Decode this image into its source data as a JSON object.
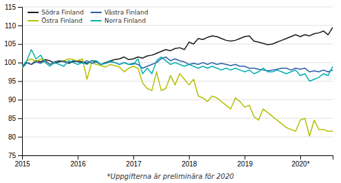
{
  "chart_data": {
    "type": "line",
    "annotations": [
      "*Uppgifterna är preliminära för 2020"
    ],
    "x": [
      2015,
      2015.0833333333333,
      2015.1666666666667,
      2015.25,
      2015.3333333333333,
      2015.4166666666667,
      2015.5,
      2015.5833333333333,
      2015.6666666666667,
      2015.75,
      2015.8333333333333,
      2015.9166666666667,
      2016,
      2016.0833333333333,
      2016.1666666666667,
      2016.25,
      2016.3333333333333,
      2016.4166666666667,
      2016.5,
      2016.5833333333333,
      2016.6666666666667,
      2016.75,
      2016.8333333333333,
      2016.9166666666667,
      2017,
      2017.0833333333333,
      2017.1666666666667,
      2017.25,
      2017.3333333333333,
      2017.4166666666667,
      2017.5,
      2017.5833333333333,
      2017.6666666666667,
      2017.75,
      2017.8333333333333,
      2017.9166666666667,
      2018,
      2018.0833333333333,
      2018.1666666666667,
      2018.25,
      2018.3333333333333,
      2018.4166666666667,
      2018.5,
      2018.5833333333333,
      2018.6666666666667,
      2018.75,
      2018.8333333333333,
      2018.9166666666667,
      2019,
      2019.0833333333333,
      2019.1666666666667,
      2019.25,
      2019.3333333333333,
      2019.4166666666667,
      2019.5,
      2019.5833333333333,
      2019.6666666666667,
      2019.75,
      2019.8333333333333,
      2019.9166666666667,
      2020,
      2020.0833333333333,
      2020.1666666666667,
      2020.25,
      2020.3333333333333,
      2020.4166666666667,
      2020.5,
      2020.5833333333333
    ],
    "series": [
      {
        "name": "Södra Finland",
        "color": "#1a1a1a",
        "values": [
          98.5,
          100.0,
          99.5,
          100.5,
          100.2,
          100.8,
          100.5,
          99.8,
          100.2,
          100.5,
          99.8,
          100.2,
          100.5,
          100.2,
          99.8,
          100.5,
          100.2,
          99.5,
          100.0,
          100.5,
          100.8,
          101.0,
          101.5,
          100.8,
          101.0,
          101.5,
          101.2,
          101.8,
          102.0,
          102.5,
          103.0,
          103.5,
          103.2,
          103.8,
          104.0,
          103.5,
          105.5,
          105.0,
          106.5,
          106.2,
          106.8,
          107.2,
          107.0,
          106.5,
          106.0,
          105.8,
          106.0,
          106.5,
          107.0,
          107.2,
          105.8,
          105.5,
          105.2,
          104.8,
          105.0,
          105.5,
          106.0,
          106.5,
          107.0,
          107.5,
          107.0,
          107.5,
          107.2,
          107.8,
          108.0,
          108.5,
          107.5,
          109.5
        ]
      },
      {
        "name": "Östra Finland",
        "color": "#b5c000",
        "values": [
          98.5,
          100.5,
          101.0,
          100.2,
          101.0,
          100.5,
          99.5,
          100.2,
          100.5,
          100.5,
          101.0,
          100.8,
          100.5,
          101.0,
          95.5,
          100.0,
          99.5,
          99.2,
          98.8,
          99.5,
          99.2,
          98.8,
          97.5,
          98.5,
          99.0,
          98.5,
          94.5,
          93.0,
          92.5,
          97.5,
          92.5,
          93.0,
          96.5,
          94.0,
          97.0,
          95.5,
          94.0,
          95.5,
          91.0,
          90.5,
          89.5,
          91.0,
          90.5,
          89.5,
          88.5,
          87.5,
          90.5,
          89.5,
          88.0,
          88.5,
          85.5,
          84.5,
          87.5,
          86.5,
          85.5,
          84.5,
          83.5,
          82.5,
          82.0,
          81.5,
          84.5,
          85.0,
          80.2,
          84.5,
          82.0,
          82.0,
          81.5,
          81.5
        ]
      },
      {
        "name": "Västra Finland",
        "color": "#2b5ea7",
        "values": [
          98.8,
          100.0,
          99.5,
          100.2,
          99.8,
          100.5,
          99.5,
          100.2,
          100.5,
          100.2,
          100.0,
          100.5,
          100.2,
          99.8,
          100.5,
          99.8,
          100.2,
          99.5,
          99.8,
          100.2,
          100.0,
          99.5,
          100.0,
          99.5,
          99.8,
          99.5,
          98.5,
          99.0,
          99.5,
          100.0,
          101.0,
          101.5,
          100.5,
          101.0,
          100.5,
          100.2,
          99.5,
          99.8,
          99.5,
          100.0,
          99.5,
          100.0,
          99.5,
          99.8,
          99.5,
          99.2,
          99.5,
          99.0,
          99.0,
          98.5,
          98.5,
          98.2,
          98.0,
          97.8,
          98.0,
          98.2,
          98.5,
          98.5,
          98.0,
          98.5,
          98.2,
          98.5,
          97.5,
          97.8,
          97.5,
          98.0,
          97.5,
          98.0
        ]
      },
      {
        "name": "Norra Finland",
        "color": "#00b0b0",
        "values": [
          99.0,
          100.5,
          103.5,
          101.0,
          102.0,
          100.0,
          99.0,
          100.0,
          99.5,
          99.0,
          100.5,
          100.0,
          99.5,
          100.0,
          99.5,
          100.5,
          100.5,
          99.5,
          99.8,
          100.5,
          100.0,
          99.5,
          100.0,
          99.5,
          99.5,
          101.0,
          97.0,
          98.5,
          97.0,
          100.5,
          101.5,
          100.5,
          99.5,
          100.0,
          99.5,
          99.0,
          99.5,
          99.0,
          98.5,
          99.0,
          98.5,
          99.0,
          98.5,
          98.0,
          98.5,
          98.0,
          98.5,
          98.0,
          97.5,
          98.0,
          97.0,
          97.5,
          98.5,
          97.5,
          97.5,
          98.0,
          97.5,
          97.0,
          97.5,
          98.0,
          96.5,
          97.0,
          95.0,
          95.5,
          96.0,
          97.0,
          96.5,
          99.0
        ]
      }
    ],
    "xlim": [
      2015,
      2020.5833333333333
    ],
    "xticks": [
      2015,
      2016,
      2017,
      2018,
      2019,
      {
        "value": 2020,
        "label": "2020*"
      }
    ],
    "ylim": [
      75,
      115
    ],
    "yticks": [
      75,
      80,
      85,
      90,
      95,
      100,
      105,
      110,
      115
    ],
    "grid": true,
    "legend": "upper left"
  }
}
